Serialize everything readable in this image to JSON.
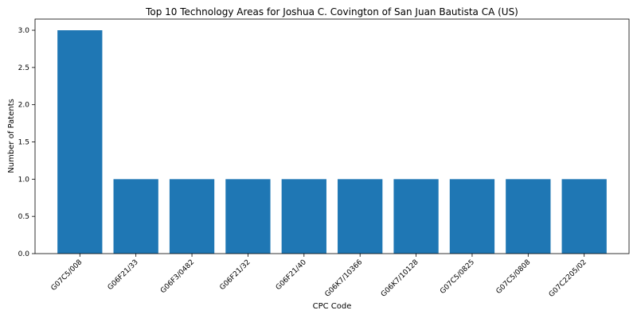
{
  "chart_data": {
    "type": "bar",
    "title": "Top 10 Technology Areas for Joshua C. Covington of San Juan Bautista CA (US)",
    "xlabel": "CPC Code",
    "ylabel": "Number of Patents",
    "categories": [
      "G07C5/008",
      "G06F21/33",
      "G06F3/0482",
      "G06F21/32",
      "G06F21/40",
      "G06K7/10366",
      "G06K7/10128",
      "G07C5/0825",
      "G07C5/0808",
      "G07C2205/02"
    ],
    "values": [
      3,
      1,
      1,
      1,
      1,
      1,
      1,
      1,
      1,
      1
    ],
    "ylim": [
      0,
      3.15
    ],
    "yticks": [
      0.0,
      0.5,
      1.0,
      1.5,
      2.0,
      2.5,
      3.0
    ],
    "ytick_labels": [
      "0.0",
      "0.5",
      "1.0",
      "1.5",
      "2.0",
      "2.5",
      "3.0"
    ],
    "bar_color": "#1f77b4",
    "grid": false,
    "legend": "none"
  }
}
